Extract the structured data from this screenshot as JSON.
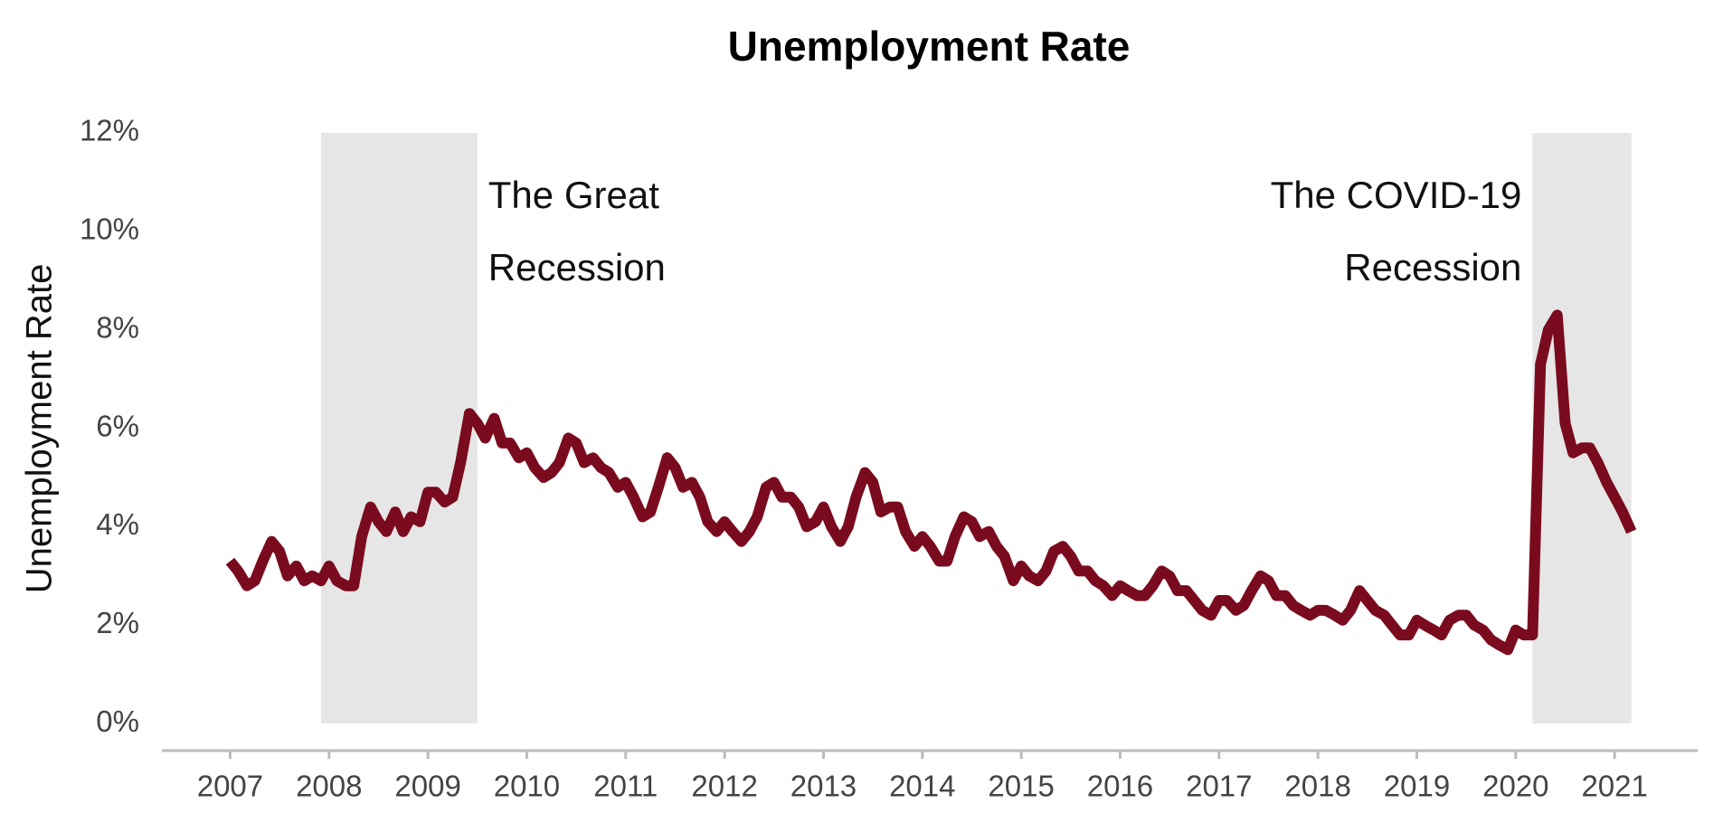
{
  "chart_data": {
    "type": "line",
    "title": "Unemployment Rate",
    "ylabel": "Unemployment Rate",
    "x": [
      2007,
      2007.08,
      2007.17,
      2007.25,
      2007.33,
      2007.42,
      2007.5,
      2007.58,
      2007.67,
      2007.75,
      2007.83,
      2007.92,
      2008,
      2008.08,
      2008.17,
      2008.25,
      2008.33,
      2008.42,
      2008.5,
      2008.58,
      2008.67,
      2008.75,
      2008.83,
      2008.92,
      2009,
      2009.08,
      2009.17,
      2009.25,
      2009.33,
      2009.42,
      2009.5,
      2009.58,
      2009.67,
      2009.75,
      2009.83,
      2009.92,
      2010,
      2010.08,
      2010.17,
      2010.25,
      2010.33,
      2010.42,
      2010.5,
      2010.58,
      2010.67,
      2010.75,
      2010.83,
      2010.92,
      2011,
      2011.08,
      2011.17,
      2011.25,
      2011.33,
      2011.42,
      2011.5,
      2011.58,
      2011.67,
      2011.75,
      2011.83,
      2011.92,
      2012,
      2012.08,
      2012.17,
      2012.25,
      2012.33,
      2012.42,
      2012.5,
      2012.58,
      2012.67,
      2012.75,
      2012.83,
      2012.92,
      2013,
      2013.08,
      2013.17,
      2013.25,
      2013.33,
      2013.42,
      2013.5,
      2013.58,
      2013.67,
      2013.75,
      2013.83,
      2013.92,
      2014,
      2014.08,
      2014.17,
      2014.25,
      2014.33,
      2014.42,
      2014.5,
      2014.58,
      2014.67,
      2014.75,
      2014.83,
      2014.92,
      2015,
      2015.08,
      2015.17,
      2015.25,
      2015.33,
      2015.42,
      2015.5,
      2015.58,
      2015.67,
      2015.75,
      2015.83,
      2015.92,
      2016,
      2016.08,
      2016.17,
      2016.25,
      2016.33,
      2016.42,
      2016.5,
      2016.58,
      2016.67,
      2016.75,
      2016.83,
      2016.92,
      2017,
      2017.08,
      2017.17,
      2017.25,
      2017.33,
      2017.42,
      2017.5,
      2017.58,
      2017.67,
      2017.75,
      2017.83,
      2017.92,
      2018,
      2018.08,
      2018.17,
      2018.25,
      2018.33,
      2018.42,
      2018.5,
      2018.58,
      2018.67,
      2018.75,
      2018.83,
      2018.92,
      2019,
      2019.08,
      2019.17,
      2019.25,
      2019.33,
      2019.42,
      2019.5,
      2019.58,
      2019.67,
      2019.75,
      2019.83,
      2019.92,
      2020,
      2020.08,
      2020.17,
      2020.25,
      2020.33,
      2020.42,
      2020.5,
      2020.58,
      2020.67,
      2020.75,
      2020.83,
      2020.92,
      2021,
      2021.08,
      2021.17
    ],
    "series": [
      {
        "name": "Unemployment Rate",
        "color": "#7a0b1e",
        "values": [
          3.3,
          3.1,
          2.8,
          2.9,
          3.3,
          3.7,
          3.5,
          3.0,
          3.2,
          2.9,
          3.0,
          2.9,
          3.2,
          2.9,
          2.8,
          2.8,
          3.8,
          4.4,
          4.1,
          3.9,
          4.3,
          3.9,
          4.2,
          4.1,
          4.7,
          4.7,
          4.5,
          4.6,
          5.3,
          6.3,
          6.1,
          5.8,
          6.2,
          5.7,
          5.7,
          5.4,
          5.5,
          5.2,
          5.0,
          5.1,
          5.3,
          5.8,
          5.7,
          5.3,
          5.4,
          5.2,
          5.1,
          4.8,
          4.9,
          4.6,
          4.2,
          4.3,
          4.8,
          5.4,
          5.2,
          4.8,
          4.9,
          4.6,
          4.1,
          3.9,
          4.1,
          3.9,
          3.7,
          3.9,
          4.2,
          4.8,
          4.9,
          4.6,
          4.6,
          4.4,
          4.0,
          4.1,
          4.4,
          4.0,
          3.7,
          4.0,
          4.6,
          5.1,
          4.9,
          4.3,
          4.4,
          4.4,
          3.9,
          3.6,
          3.8,
          3.6,
          3.3,
          3.3,
          3.8,
          4.2,
          4.1,
          3.8,
          3.9,
          3.6,
          3.4,
          2.9,
          3.2,
          3.0,
          2.9,
          3.1,
          3.5,
          3.6,
          3.4,
          3.1,
          3.1,
          2.9,
          2.8,
          2.6,
          2.8,
          2.7,
          2.6,
          2.6,
          2.8,
          3.1,
          3.0,
          2.7,
          2.7,
          2.5,
          2.3,
          2.2,
          2.5,
          2.5,
          2.3,
          2.4,
          2.7,
          3.0,
          2.9,
          2.6,
          2.6,
          2.4,
          2.3,
          2.2,
          2.3,
          2.3,
          2.2,
          2.1,
          2.3,
          2.7,
          2.5,
          2.3,
          2.2,
          2.0,
          1.8,
          1.8,
          2.1,
          2.0,
          1.9,
          1.8,
          2.1,
          2.2,
          2.2,
          2.0,
          1.9,
          1.7,
          1.6,
          1.5,
          1.9,
          1.8,
          1.8,
          7.3,
          8.0,
          8.3,
          6.1,
          5.5,
          5.6,
          5.6,
          5.3,
          4.9,
          4.6,
          4.3,
          3.9
        ]
      }
    ],
    "xlim": [
      2006.31,
      2021.84
    ],
    "xticks": [
      2007,
      2008,
      2009,
      2010,
      2011,
      2012,
      2013,
      2014,
      2015,
      2016,
      2017,
      2018,
      2019,
      2020,
      2021
    ],
    "ylim": [
      -0.55,
      12
    ],
    "yticks": [
      {
        "value": 0,
        "label": "0%"
      },
      {
        "value": 2,
        "label": "2%"
      },
      {
        "value": 4,
        "label": "4%"
      },
      {
        "value": 6,
        "label": "6%"
      },
      {
        "value": 8,
        "label": "8%"
      },
      {
        "value": 10,
        "label": "10%"
      },
      {
        "value": 12,
        "label": "12%"
      }
    ],
    "grid": false,
    "shaded_regions": [
      {
        "start": 2007.92,
        "end": 2009.5,
        "label": [
          "The Great",
          "Recession"
        ],
        "label_side": "right",
        "color": "#e6e6e6"
      },
      {
        "start": 2020.17,
        "end": 2021.17,
        "label": [
          "The COVID-19",
          "Recession"
        ],
        "label_side": "left",
        "color": "#e6e6e6"
      }
    ]
  }
}
